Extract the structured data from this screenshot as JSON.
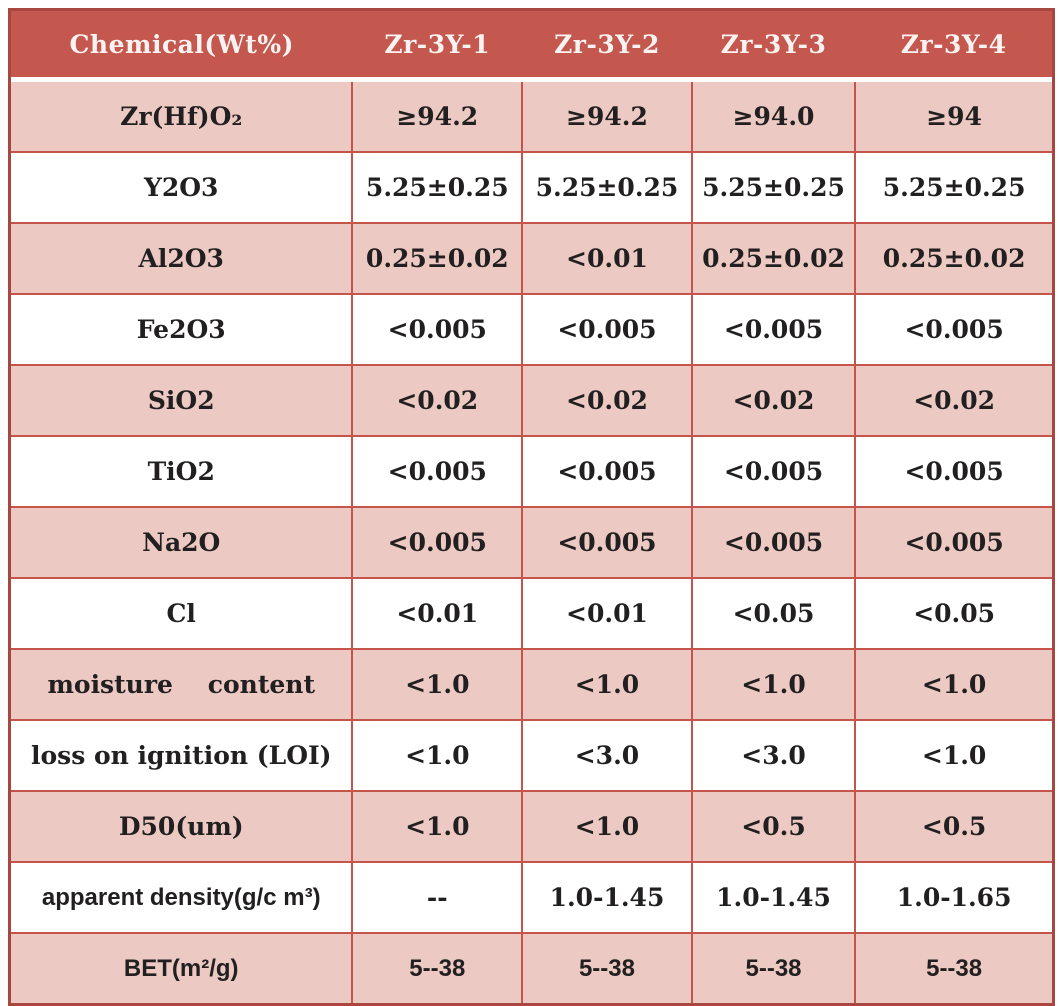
{
  "table": {
    "title_semantic": "zirconia powder chemical specification table",
    "header": [
      "Chemical(Wt%)",
      "Zr-3Y-1",
      "Zr-3Y-2",
      "Zr-3Y-3",
      "Zr-3Y-4"
    ],
    "rows": [
      {
        "label": "Zr(Hf)O₂",
        "values": [
          "≥94.2",
          "≥94.2",
          "≥94.0",
          "≥94"
        ]
      },
      {
        "label": "Y2O3",
        "values": [
          "5.25±0.25",
          "5.25±0.25",
          "5.25±0.25",
          "5.25±0.25"
        ]
      },
      {
        "label": "Al2O3",
        "values": [
          "0.25±0.02",
          "<0.01",
          "0.25±0.02",
          "0.25±0.02"
        ]
      },
      {
        "label": "Fe2O3",
        "values": [
          "<0.005",
          "<0.005",
          "<0.005",
          "<0.005"
        ]
      },
      {
        "label": "SiO2",
        "values": [
          "<0.02",
          "<0.02",
          "<0.02",
          "<0.02"
        ]
      },
      {
        "label": "TiO2",
        "values": [
          "<0.005",
          "<0.005",
          "<0.005",
          "<0.005"
        ]
      },
      {
        "label": "Na2O",
        "values": [
          "<0.005",
          "<0.005",
          "<0.005",
          "<0.005"
        ]
      },
      {
        "label": "Cl",
        "values": [
          "<0.01",
          "<0.01",
          "<0.05",
          "<0.05"
        ]
      },
      {
        "label": "moisture    content",
        "values": [
          "<1.0",
          "<1.0",
          "<1.0",
          "<1.0"
        ]
      },
      {
        "label": "loss on ignition (LOI)",
        "values": [
          "<1.0",
          "<3.0",
          "<3.0",
          "<1.0"
        ]
      },
      {
        "label": "D50(um)",
        "values": [
          "<1.0",
          "<1.0",
          "<0.5",
          "<0.5"
        ]
      },
      {
        "label": "apparent density(g/c m³)",
        "values": [
          "--",
          "1.0-1.45",
          "1.0-1.45",
          "1.0-1.65"
        ]
      },
      {
        "label": "BET(m²/g)",
        "values": [
          "5--38",
          "5--38",
          "5--38",
          "5--38"
        ]
      }
    ]
  },
  "colors": {
    "header_bg": "#c4584f",
    "band_bg": "#edc9c3",
    "grid": "#c5544b",
    "outer_border": "#a8473f",
    "header_text": "#fbf3f1",
    "body_text": "#211f1f",
    "page_bg": "#ffffff"
  }
}
